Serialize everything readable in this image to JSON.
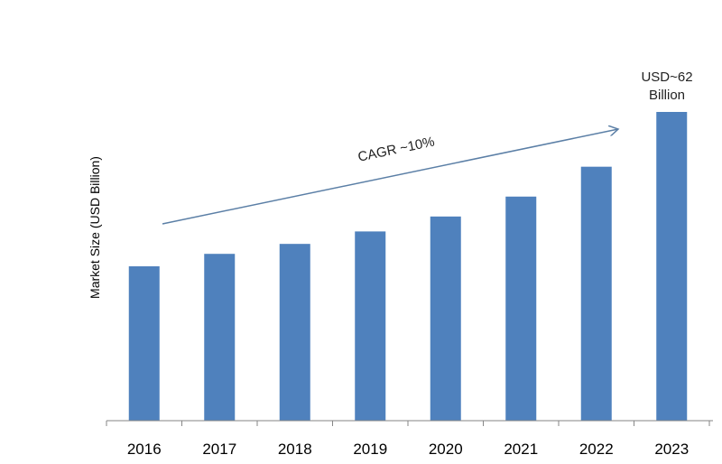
{
  "chart_data": {
    "type": "bar",
    "categories": [
      "2016",
      "2017",
      "2018",
      "2019",
      "2020",
      "2021",
      "2022",
      "2023"
    ],
    "values": [
      31,
      33.5,
      35.5,
      38,
      41,
      45,
      51,
      62
    ],
    "ylabel": "Market Size (USD Billion)",
    "xlabel": "",
    "ylim": [
      0,
      62
    ],
    "grid": false,
    "bar_color": "#4f81bd",
    "trend_arrow_label": "CAGR ~10%",
    "last_bar_label": [
      "USD~62",
      "Billion"
    ]
  }
}
